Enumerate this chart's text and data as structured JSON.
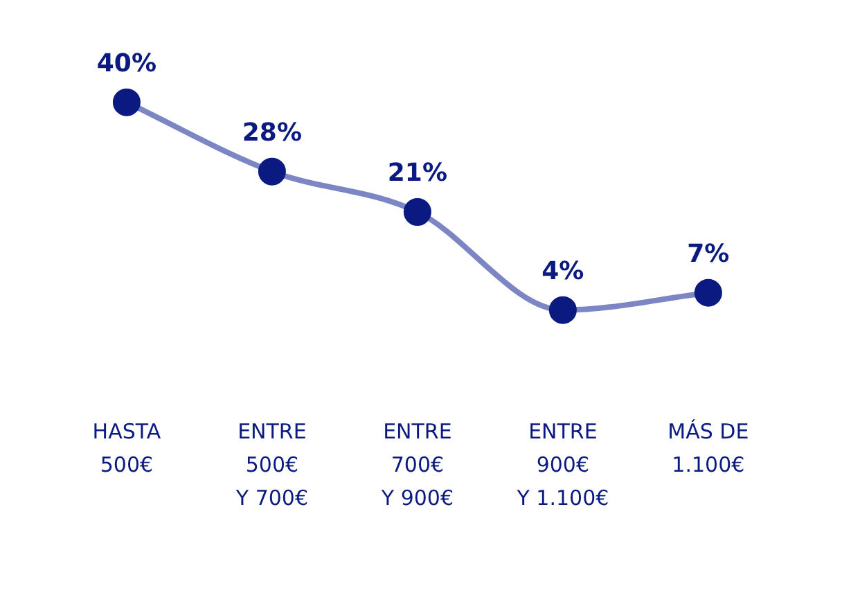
{
  "chart_data": {
    "type": "line",
    "categories": [
      "HASTA\n500€",
      "ENTRE\n500€\nY 700€",
      "ENTRE\n700€\nY 900€",
      "ENTRE\n900€\nY 1.100€",
      "MÁS DE\n1.100€"
    ],
    "series": [
      {
        "color": "#7d86c4",
        "colors": [
          "#0b1a80",
          "#0b1a80",
          "#0b1a80",
          "#0b1a80",
          "#0b1a80"
        ],
        "values": [
          40,
          28,
          21,
          4,
          7
        ],
        "value_labels": [
          "40%",
          "28%",
          "21%",
          "4%",
          "7%"
        ]
      }
    ],
    "marker": "circle",
    "line_style": "solid",
    "grid": false,
    "legend": false,
    "tick_labels": "x"
  }
}
